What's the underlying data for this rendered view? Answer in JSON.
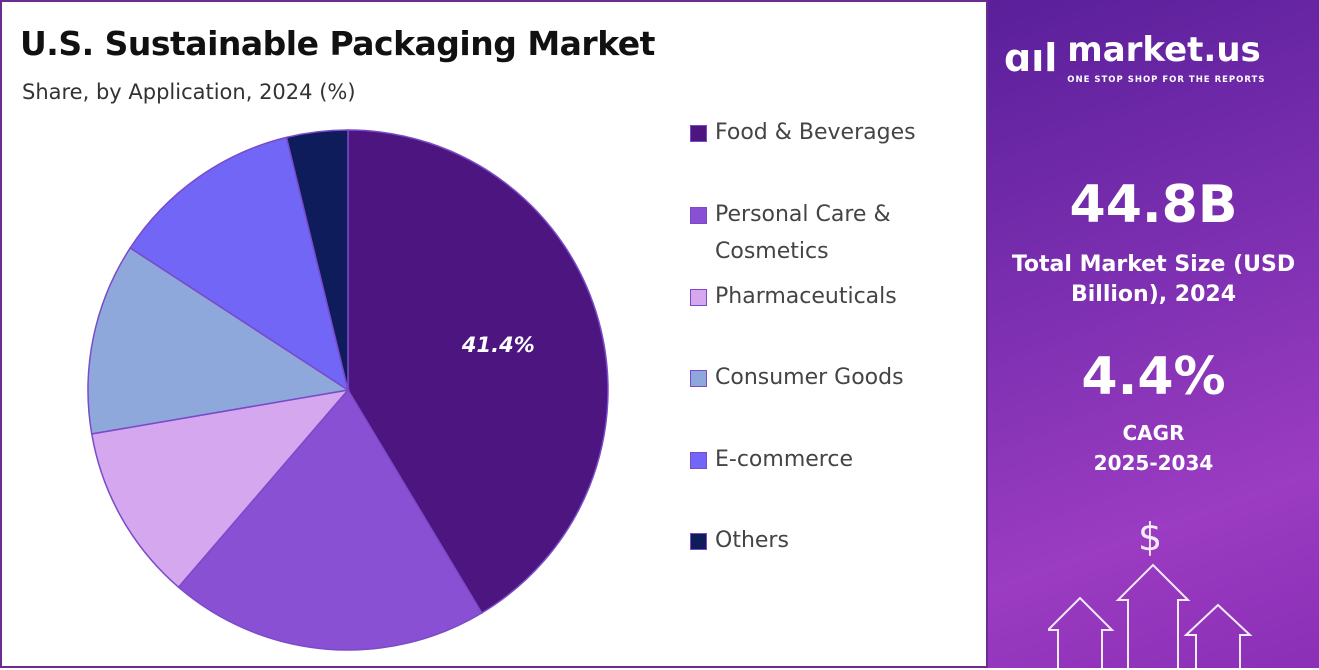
{
  "header": {
    "title": "U.S. Sustainable Packaging Market",
    "subtitle": "Share, by Application, 2024 (%)"
  },
  "chart_data": {
    "type": "pie",
    "title": "U.S. Sustainable Packaging Market",
    "subtitle": "Share, by Application, 2024 (%)",
    "categories": [
      "Food & Beverages",
      "Personal Care & Cosmetics",
      "Pharmaceuticals",
      "Consumer Goods",
      "E-commerce",
      "Others"
    ],
    "values": [
      41.4,
      19.9,
      11.0,
      11.9,
      12.0,
      3.8
    ],
    "colors": [
      "#4c1580",
      "#8a50d4",
      "#d4a7ee",
      "#8fa8dc",
      "#7266f7",
      "#0f1c5c"
    ],
    "data_labels": [
      "41.4%",
      "",
      "",
      "",
      "",
      ""
    ],
    "legend": "right"
  },
  "sidebar": {
    "brand": "market.us",
    "tagline": "ONE STOP SHOP FOR THE REPORTS",
    "market_size": "44.8B",
    "market_size_label": "Total Market Size (USD Billion), 2024",
    "cagr": "4.4%",
    "cagr_label": "CAGR",
    "cagr_period": "2025-2034",
    "dollar": "$"
  }
}
